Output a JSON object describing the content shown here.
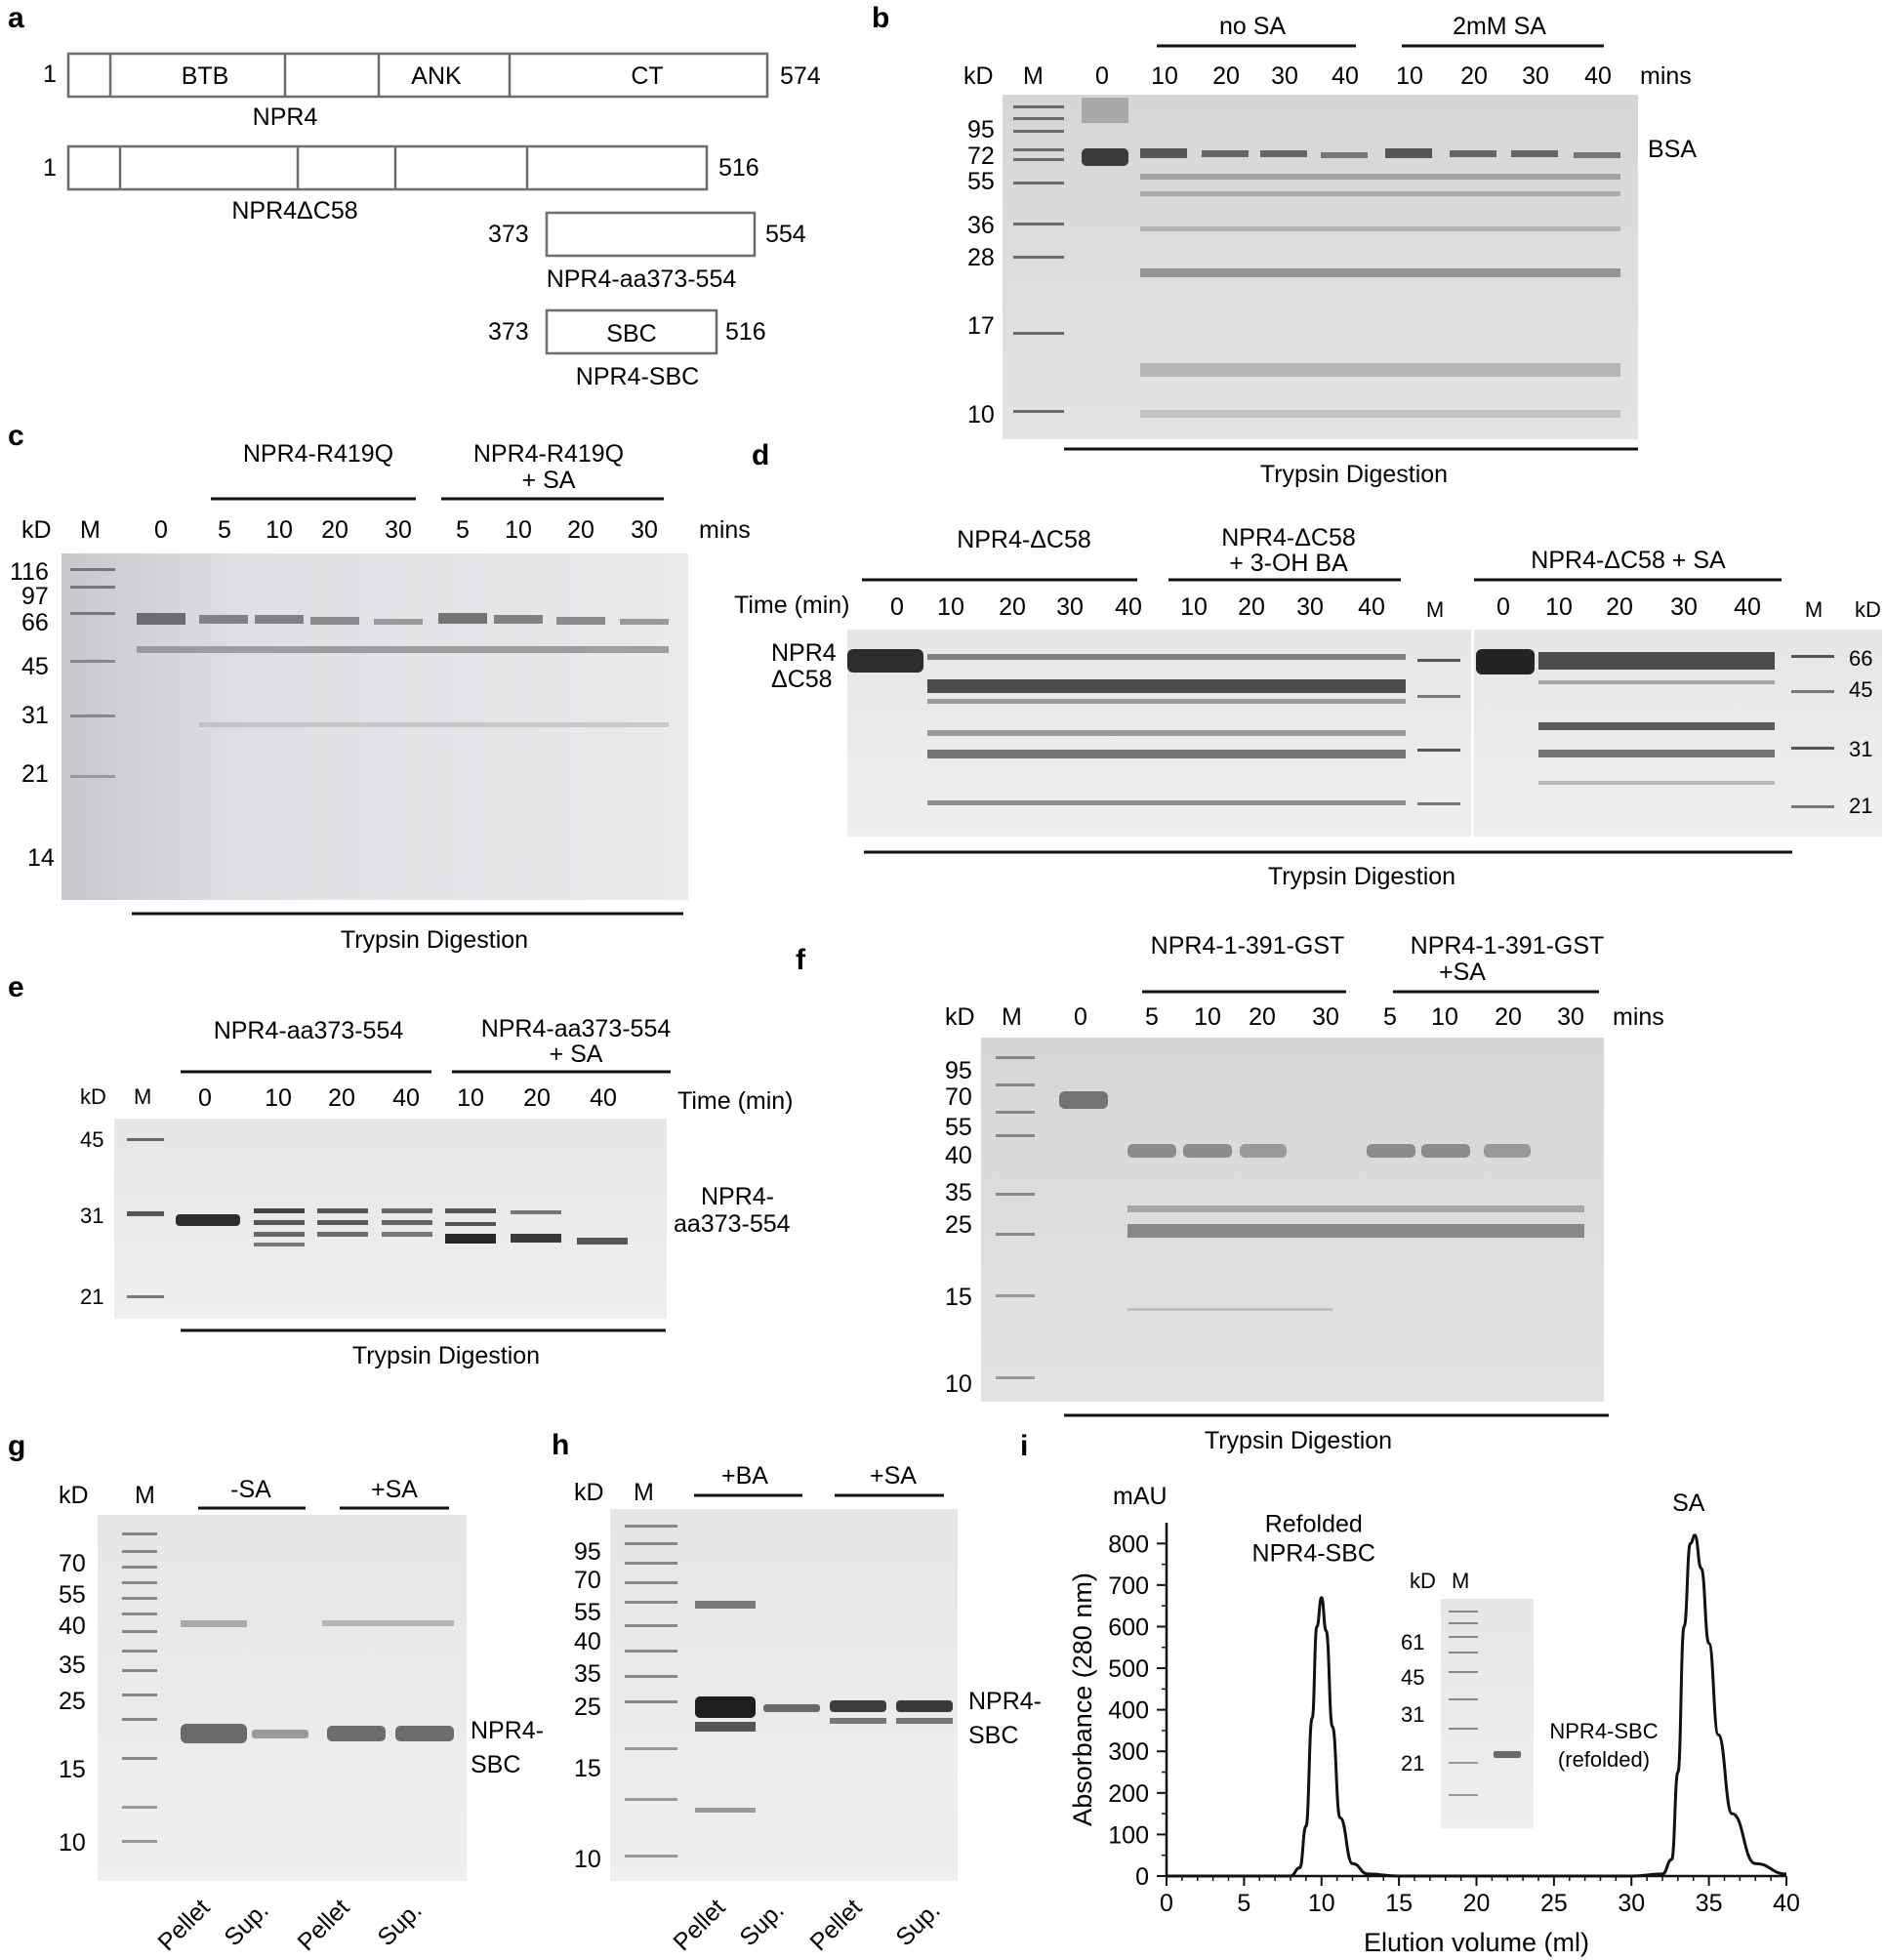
{
  "panel_a": {
    "letter": "a",
    "constructs": [
      {
        "name": "NPR4",
        "start": "1",
        "end": "574",
        "domains": [
          "BTB",
          "ANK",
          "CT"
        ]
      },
      {
        "name": "NPR4ΔC58",
        "start": "1",
        "end": "516"
      },
      {
        "name": "NPR4-aa373-554",
        "start": "373",
        "end": "554"
      },
      {
        "name": "NPR4-SBC",
        "start": "373",
        "end": "516",
        "domain": "SBC"
      }
    ]
  },
  "panel_b": {
    "letter": "b",
    "group1": "no SA",
    "group2": "2mM SA",
    "kd": "kD",
    "m": "M",
    "unit": "mins",
    "lanes": [
      "0",
      "10",
      "20",
      "30",
      "40",
      "10",
      "20",
      "30",
      "40"
    ],
    "markers": [
      "95",
      "72",
      "55",
      "36",
      "28",
      "17",
      "10"
    ],
    "side_label": "BSA",
    "footer": "Trypsin Digestion"
  },
  "panel_c": {
    "letter": "c",
    "group1": "NPR4-R419Q",
    "group2_l1": "NPR4-R419Q",
    "group2_l2": "+ SA",
    "kd": "kD",
    "m": "M",
    "unit": "mins",
    "lanes": [
      "0",
      "5",
      "10",
      "20",
      "30",
      "5",
      "10",
      "20",
      "30"
    ],
    "markers": [
      "116",
      "97",
      "66",
      "45",
      "31",
      "21",
      "14"
    ],
    "footer": "Trypsin Digestion"
  },
  "panel_d": {
    "letter": "d",
    "group1": "NPR4-ΔC58",
    "group2_l1": "NPR4-ΔC58",
    "group2_l2": "+ 3-OH BA",
    "group3": "NPR4-ΔC58 + SA",
    "time_label": "Time (min)",
    "lanes_left": [
      "0",
      "10",
      "20",
      "30",
      "40",
      "10",
      "20",
      "30",
      "40"
    ],
    "lanes_right": [
      "0",
      "10",
      "20",
      "30",
      "40"
    ],
    "m": "M",
    "kd": "kD",
    "side_l1": "NPR4",
    "side_l2": "ΔC58",
    "markers": [
      "66",
      "45",
      "31",
      "21"
    ],
    "footer": "Trypsin Digestion"
  },
  "panel_e": {
    "letter": "e",
    "group1": "NPR4-aa373-554",
    "group2_l1": "NPR4-aa373-554",
    "group2_l2": "+ SA",
    "kd": "kD",
    "m": "M",
    "lanes": [
      "0",
      "10",
      "20",
      "40",
      "10",
      "20",
      "40"
    ],
    "time_label": "Time (min)",
    "markers": [
      "45",
      "31",
      "21"
    ],
    "side_l1": "NPR4-",
    "side_l2": "aa373-554",
    "footer": "Trypsin Digestion"
  },
  "panel_f": {
    "letter": "f",
    "group1": "NPR4-1-391-GST",
    "group2_l1": "NPR4-1-391-GST",
    "group2_l2": "+SA",
    "kd": "kD",
    "m": "M",
    "unit": "mins",
    "lanes": [
      "0",
      "5",
      "10",
      "20",
      "30",
      "5",
      "10",
      "20",
      "30"
    ],
    "markers": [
      "95",
      "70",
      "55",
      "40",
      "35",
      "25",
      "15",
      "10"
    ],
    "footer": "Trypsin Digestion"
  },
  "panel_g": {
    "letter": "g",
    "kd": "kD",
    "m": "M",
    "group1": "-SA",
    "group2": "+SA",
    "markers": [
      "70",
      "55",
      "40",
      "35",
      "25",
      "15",
      "10"
    ],
    "side_l1": "NPR4-",
    "side_l2": "SBC",
    "bottom": [
      "Pellet",
      "Sup.",
      "Pellet",
      "Sup."
    ]
  },
  "panel_h": {
    "letter": "h",
    "kd": "kD",
    "m": "M",
    "group1": "+BA",
    "group2": "+SA",
    "markers": [
      "95",
      "70",
      "55",
      "40",
      "35",
      "25",
      "15",
      "10"
    ],
    "side_l1": "NPR4-",
    "side_l2": "SBC",
    "bottom": [
      "Pellet",
      "Sup.",
      "Pellet",
      "Sup."
    ]
  },
  "panel_i": {
    "letter": "i",
    "unit_label": "mAU",
    "inset": {
      "kd": "kD",
      "m": "M",
      "markers": [
        "61",
        "45",
        "31",
        "21"
      ],
      "label_l1": "NPR4-SBC",
      "label_l2": "(refolded)"
    }
  },
  "chart_data": {
    "type": "line",
    "xlabel": "Elution volume (ml)",
    "ylabel": "Absorbance (280 nm)",
    "xlim": [
      0,
      40
    ],
    "ylim": [
      0,
      850
    ],
    "xticks": [
      0,
      5,
      10,
      15,
      20,
      25,
      30,
      35,
      40
    ],
    "yticks": [
      0,
      100,
      200,
      300,
      400,
      500,
      600,
      700,
      800
    ],
    "grid": false,
    "series": [
      {
        "x": [
          0,
          8,
          8.6,
          9,
          9.4,
          9.7,
          10,
          10.3,
          10.7,
          11.2,
          12,
          13,
          15,
          20,
          25,
          30,
          32,
          32.6,
          33,
          33.4,
          33.8,
          34.1,
          34.5,
          35,
          35.6,
          36.5,
          38,
          40
        ],
        "values": [
          0,
          0,
          20,
          120,
          380,
          600,
          670,
          590,
          360,
          140,
          30,
          5,
          0,
          0,
          0,
          0,
          5,
          40,
          250,
          600,
          800,
          820,
          740,
          560,
          340,
          150,
          30,
          5
        ]
      }
    ],
    "annotations": [
      {
        "text_l1": "Refolded",
        "text_l2": "NPR4-SBC",
        "x": 10,
        "y": 670
      },
      {
        "text": "SA",
        "x": 34,
        "y": 820
      }
    ]
  }
}
